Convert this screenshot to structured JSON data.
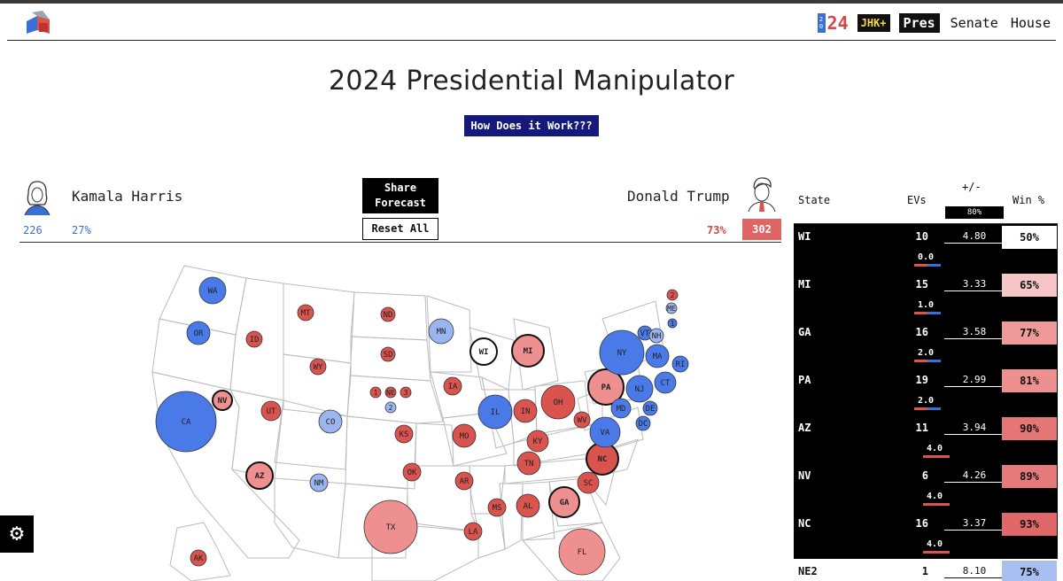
{
  "nav": {
    "badge_digits": [
      "2",
      "0"
    ],
    "badge_number": "24",
    "jhk_label": "JHK+",
    "pres_label": "Pres",
    "senate_label": "Senate",
    "house_label": "House"
  },
  "page": {
    "title": "2024 Presidential Manipulator",
    "how_label": "How Does it Work???"
  },
  "candidates": {
    "harris": {
      "name": "Kamala Harris",
      "ev": "226",
      "pct": "27%",
      "color": "#3a6fd8"
    },
    "trump": {
      "name": "Donald Trump",
      "ev": "302",
      "pct": "73%",
      "color": "#e06666"
    }
  },
  "controls": {
    "share_line1": "Share",
    "share_line2": "Forecast",
    "reset_label": "Reset All"
  },
  "table": {
    "header_state": "State",
    "header_evs": "EVs",
    "header_margin": "+/-",
    "header_range": "80%",
    "header_win": "Win %",
    "rows": [
      {
        "state": "WI",
        "evs": "10",
        "margin": "4.80",
        "shift": "0.0",
        "win": "50%",
        "win_bg": "#ffffff",
        "shift_side": "center"
      },
      {
        "state": "MI",
        "evs": "15",
        "margin": "3.33",
        "shift": "1.0",
        "win": "65%",
        "win_bg": "#f6c6c6",
        "shift_side": "center"
      },
      {
        "state": "GA",
        "evs": "16",
        "margin": "3.58",
        "shift": "2.0",
        "win": "77%",
        "win_bg": "#ee9a9a",
        "shift_side": "center"
      },
      {
        "state": "PA",
        "evs": "19",
        "margin": "2.99",
        "shift": "2.0",
        "win": "81%",
        "win_bg": "#ec9090",
        "shift_side": "center"
      },
      {
        "state": "AZ",
        "evs": "11",
        "margin": "3.94",
        "shift": "4.0",
        "win": "90%",
        "win_bg": "#e57676",
        "shift_side": "red"
      },
      {
        "state": "NV",
        "evs": "6",
        "margin": "4.26",
        "shift": "4.0",
        "win": "89%",
        "win_bg": "#e67a7a",
        "shift_side": "red"
      },
      {
        "state": "NC",
        "evs": "16",
        "margin": "3.37",
        "shift": "4.0",
        "win": "93%",
        "win_bg": "#e06868",
        "shift_side": "red"
      },
      {
        "state": "NE2",
        "evs": "1",
        "margin": "8.10",
        "shift": "",
        "win": "75%",
        "win_bg": "#a9bff2",
        "shift_side": "none"
      }
    ]
  },
  "map_colors": {
    "safe_dem": "#4a7ae8",
    "lean_dem": "#9bb5f0",
    "safe_rep": "#d9534f",
    "lean_rep": "#ee9090",
    "tossup": "#ffffff"
  },
  "map_states": [
    {
      "label": "WA",
      "cls": "safe_dem"
    },
    {
      "label": "OR",
      "cls": "safe_dem"
    },
    {
      "label": "CA",
      "cls": "safe_dem"
    },
    {
      "label": "NV",
      "cls": "lean_rep"
    },
    {
      "label": "ID",
      "cls": "safe_rep"
    },
    {
      "label": "MT",
      "cls": "safe_rep"
    },
    {
      "label": "WY",
      "cls": "safe_rep"
    },
    {
      "label": "UT",
      "cls": "safe_rep"
    },
    {
      "label": "CO",
      "cls": "lean_dem"
    },
    {
      "label": "AZ",
      "cls": "lean_rep"
    },
    {
      "label": "NM",
      "cls": "lean_dem"
    },
    {
      "label": "ND",
      "cls": "safe_rep"
    },
    {
      "label": "SD",
      "cls": "safe_rep"
    },
    {
      "label": "1",
      "cls": "safe_rep"
    },
    {
      "label": "NE",
      "cls": "safe_rep"
    },
    {
      "label": "3",
      "cls": "safe_rep"
    },
    {
      "label": "2",
      "cls": "lean_dem"
    },
    {
      "label": "KS",
      "cls": "safe_rep"
    },
    {
      "label": "OK",
      "cls": "safe_rep"
    },
    {
      "label": "TX",
      "cls": "lean_rep"
    },
    {
      "label": "MN",
      "cls": "lean_dem"
    },
    {
      "label": "IA",
      "cls": "safe_rep"
    },
    {
      "label": "MO",
      "cls": "safe_rep"
    },
    {
      "label": "AR",
      "cls": "safe_rep"
    },
    {
      "label": "LA",
      "cls": "safe_rep"
    },
    {
      "label": "WI",
      "cls": "tossup"
    },
    {
      "label": "IL",
      "cls": "safe_dem"
    },
    {
      "label": "MI",
      "cls": "lean_rep"
    },
    {
      "label": "IN",
      "cls": "safe_rep"
    },
    {
      "label": "OH",
      "cls": "safe_rep"
    },
    {
      "label": "KY",
      "cls": "safe_rep"
    },
    {
      "label": "TN",
      "cls": "safe_rep"
    },
    {
      "label": "MS",
      "cls": "safe_rep"
    },
    {
      "label": "AL",
      "cls": "safe_rep"
    },
    {
      "label": "GA",
      "cls": "lean_rep"
    },
    {
      "label": "FL",
      "cls": "lean_rep"
    },
    {
      "label": "SC",
      "cls": "safe_rep"
    },
    {
      "label": "NC",
      "cls": "safe_rep"
    },
    {
      "label": "VA",
      "cls": "safe_dem"
    },
    {
      "label": "WV",
      "cls": "safe_rep"
    },
    {
      "label": "PA",
      "cls": "lean_rep"
    },
    {
      "label": "NY",
      "cls": "safe_dem"
    },
    {
      "label": "NJ",
      "cls": "safe_dem"
    },
    {
      "label": "MD",
      "cls": "safe_dem"
    },
    {
      "label": "DE",
      "cls": "safe_dem"
    },
    {
      "label": "DC",
      "cls": "safe_dem"
    },
    {
      "label": "CT",
      "cls": "safe_dem"
    },
    {
      "label": "RI",
      "cls": "safe_dem"
    },
    {
      "label": "MA",
      "cls": "safe_dem"
    },
    {
      "label": "VT",
      "cls": "safe_dem"
    },
    {
      "label": "NH",
      "cls": "lean_dem"
    },
    {
      "label": "ME",
      "cls": "lean_dem"
    },
    {
      "label": "2",
      "cls": "safe_rep"
    },
    {
      "label": "1",
      "cls": "safe_dem"
    },
    {
      "label": "AK",
      "cls": "safe_rep"
    }
  ]
}
